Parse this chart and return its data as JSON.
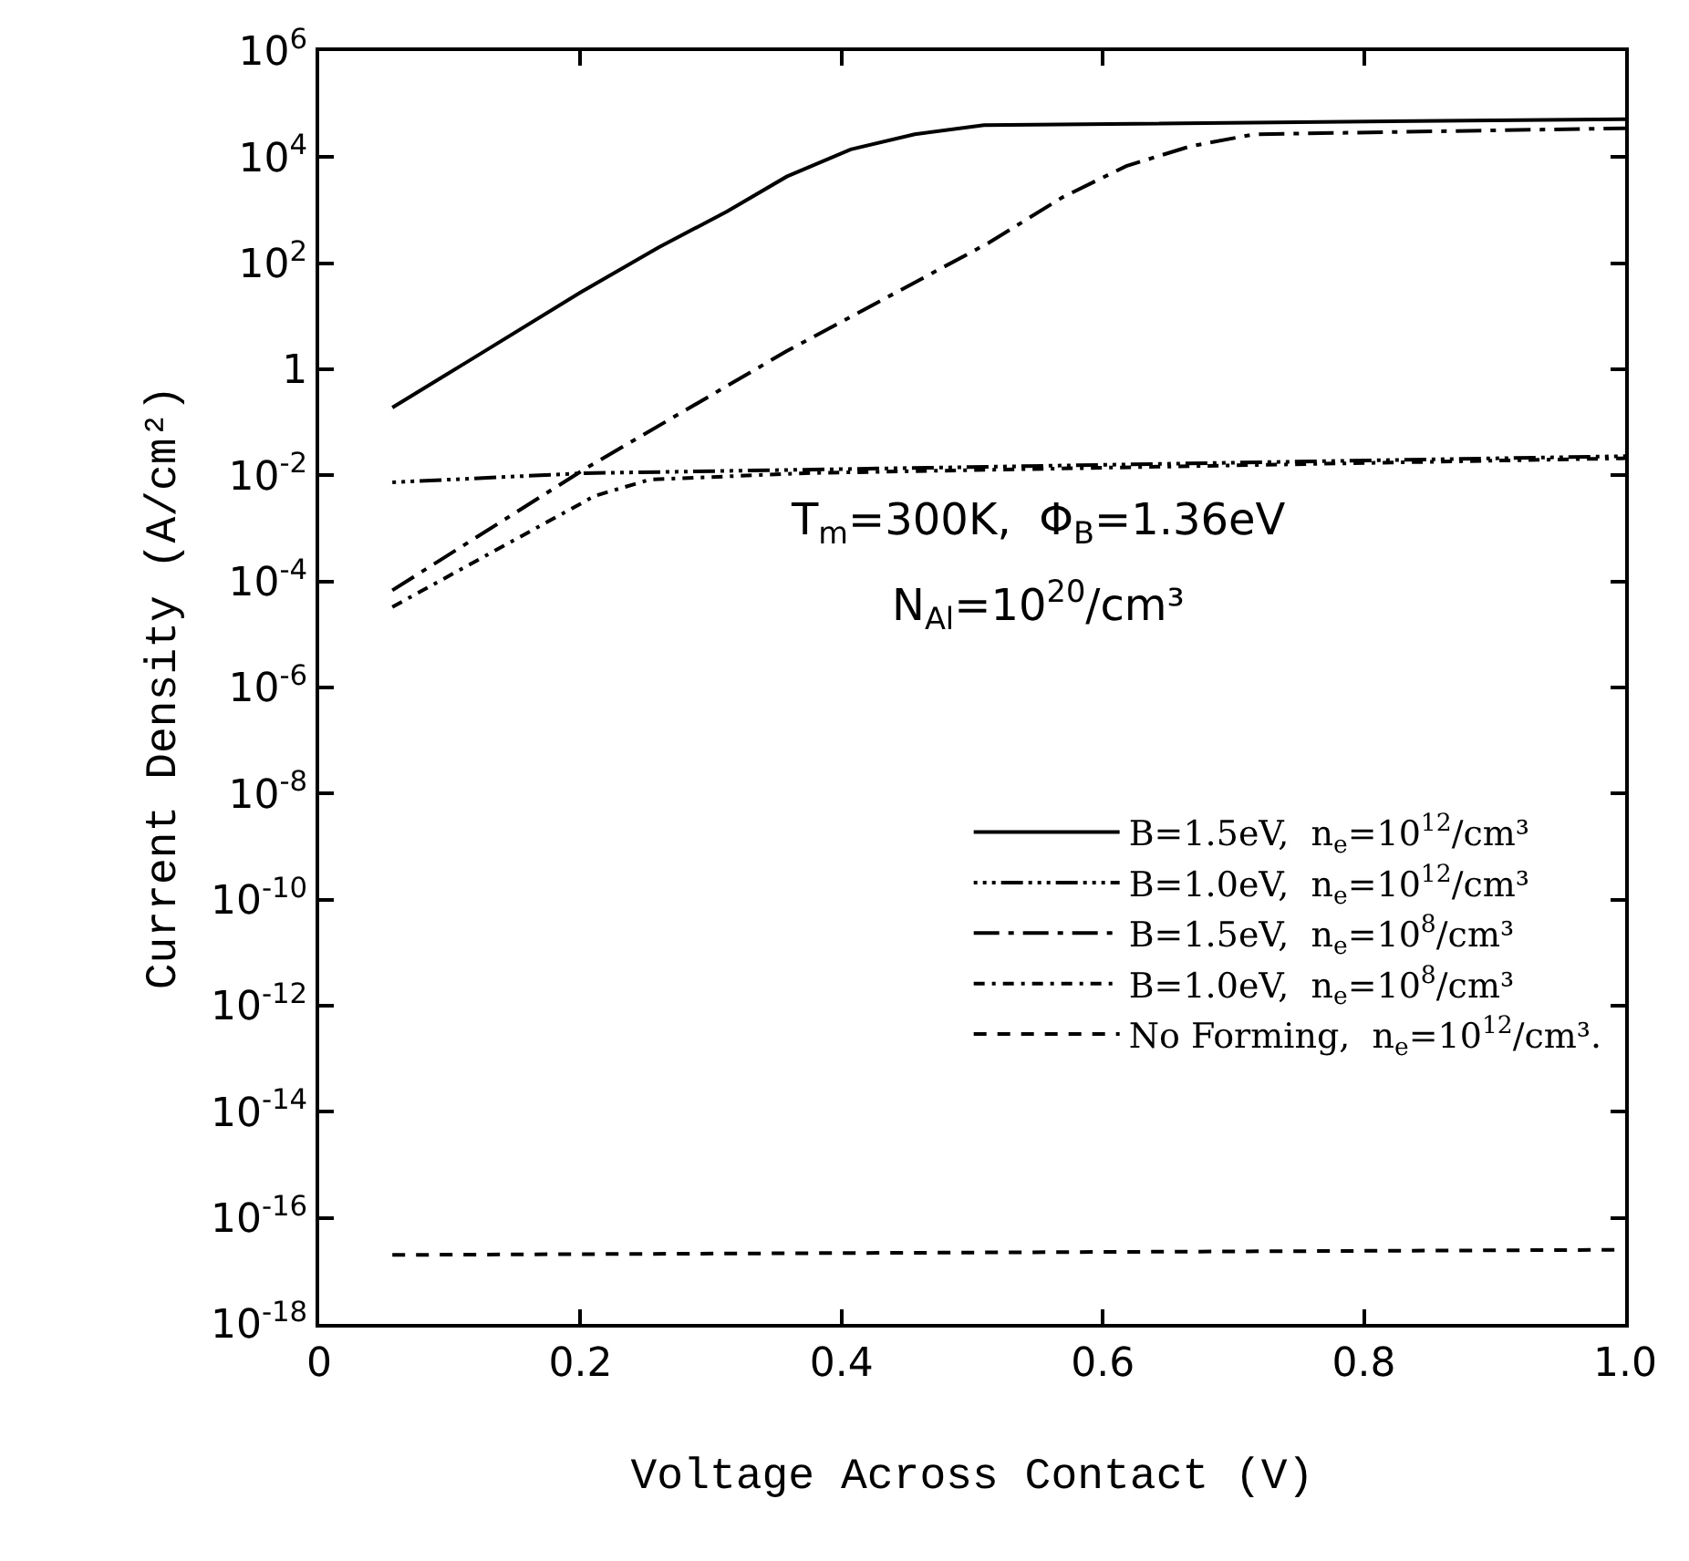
{
  "chart_data": {
    "type": "line",
    "xlabel": "Voltage Across Contact (V)",
    "ylabel": "Current Density (A/cm²)",
    "annotations": [
      "T$_{m}$=300K,  Φ$_{B}$=1.36eV",
      "N$_{Al}$=10$^{20}$/cm³"
    ],
    "log": "y",
    "legend": "bottom right",
    "marker": "none",
    "xlim": [
      0,
      1
    ],
    "xticks": [
      0,
      0.2,
      0.4,
      0.6,
      0.8,
      {
        "value": 1,
        "label": "1.0"
      }
    ],
    "ylim": [
      1e-18,
      1000000.0
    ],
    "yticks": [
      {
        "value": 1000000.0,
        "label": "10$^{6}$"
      },
      {
        "value": 10000.0,
        "label": "10$^{4}$"
      },
      {
        "value": 100,
        "label": "10$^{2}$"
      },
      1,
      {
        "value": 0.01,
        "label": "10$^{-2}$"
      },
      {
        "value": 0.0001,
        "label": "10$^{-4}$"
      },
      {
        "value": 1e-06,
        "label": "10$^{-6}$"
      },
      {
        "value": 1e-08,
        "label": "10$^{-8}$"
      },
      {
        "value": 1e-10,
        "label": "10$^{-10}$"
      },
      {
        "value": 1e-12,
        "label": "10$^{-12}$"
      },
      {
        "value": 1e-14,
        "label": "10$^{-14}$"
      },
      {
        "value": 1e-16,
        "label": "10$^{-16}$"
      },
      {
        "value": 1e-18,
        "label": "10$^{-18}$"
      }
    ],
    "series": [
      {
        "name": "B=1.5eV,  n$_{e}$=10$^{12}$/cm³",
        "color": "#000000",
        "line_style": "solid",
        "x": [
          0.056,
          0.098,
          0.2,
          0.26,
          0.3125,
          0.358,
          0.407,
          0.456,
          0.509,
          1.0
        ],
        "values": [
          0.19,
          0.81,
          28,
          200,
          950,
          4300,
          14000,
          27000,
          40000,
          52000
        ]
      },
      {
        "name": "B=1.0eV,  n$_{e}$=10$^{12}$/cm³",
        "color": "#000000",
        "line_style": "dotted",
        "x": [
          0.056,
          0.204,
          0.513,
          1.0
        ],
        "values": [
          0.0074,
          0.011,
          0.0145,
          0.023
        ]
      },
      {
        "name": "B=1.5eV,  n$_{e}$=10$^{8}$/cm³",
        "color": "#000000",
        "line_style": "dashed",
        "x": [
          0.056,
          0.204,
          0.358,
          0.513,
          0.569,
          0.618,
          0.667,
          0.716,
          1.0
        ],
        "values": [
          6.8e-05,
          0.0135,
          2.2,
          245,
          1740,
          6800,
          16000,
          27000,
          35000
        ]
      },
      {
        "name": "B=1.0eV,  n$_{e}$=10$^{8}$/cm³",
        "color": "#000000",
        "line_style": "dashed",
        "x": [
          0.056,
          0.211,
          0.253,
          0.372,
          1.0
        ],
        "values": [
          3.3e-05,
          0.0041,
          0.0083,
          0.011,
          0.021
        ]
      },
      {
        "name": "No Forming,  n$_{e}$=10$^{12}$/cm³.",
        "color": "#000000",
        "line_style": "dashed",
        "x": [
          0.056,
          1.0
        ],
        "values": [
          2e-17,
          2.5e-17
        ]
      }
    ]
  }
}
